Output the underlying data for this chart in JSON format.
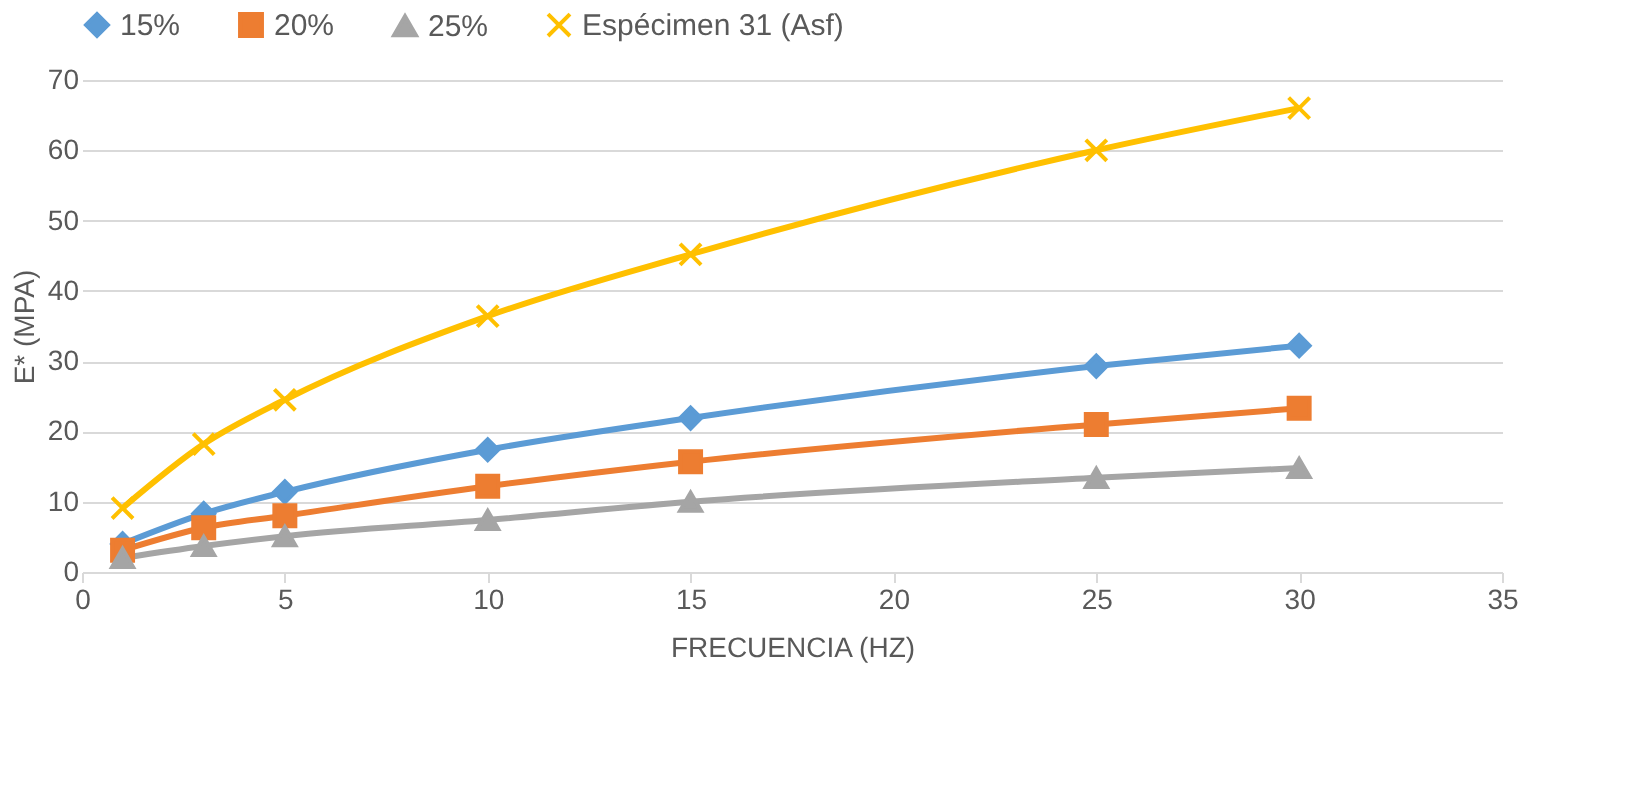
{
  "chart_data": {
    "type": "line",
    "xlabel": "FRECUENCIA (HZ)",
    "ylabel": "E* (MPA)",
    "x": [
      1,
      3,
      5,
      10,
      15,
      25,
      30
    ],
    "series": [
      {
        "name": "15%",
        "color": "#5b9bd5",
        "marker": "diamond",
        "values": [
          4,
          8.3,
          11.4,
          17.4,
          21.9,
          29.3,
          32.2
        ]
      },
      {
        "name": "20%",
        "color": "#ed7d31",
        "marker": "square",
        "values": [
          3.1,
          6.3,
          8,
          12.2,
          15.7,
          21,
          23.3
        ]
      },
      {
        "name": "25%",
        "color": "#a5a5a5",
        "marker": "triangle",
        "values": [
          2,
          3.7,
          5.1,
          7.4,
          10,
          13.4,
          14.8
        ]
      },
      {
        "name": "Espécimen 31 (Asf)",
        "color": "#ffc000",
        "marker": "cross",
        "values": [
          9.1,
          18.2,
          24.5,
          36.4,
          45.2,
          60,
          66
        ]
      }
    ],
    "xlim": [
      0,
      35
    ],
    "xticks": [
      0,
      5,
      10,
      15,
      20,
      25,
      30,
      35
    ],
    "ylim": [
      0,
      70
    ],
    "yticks": [
      0,
      10,
      20,
      30,
      40,
      50,
      60,
      70
    ],
    "grid": "y",
    "legend": "top"
  }
}
